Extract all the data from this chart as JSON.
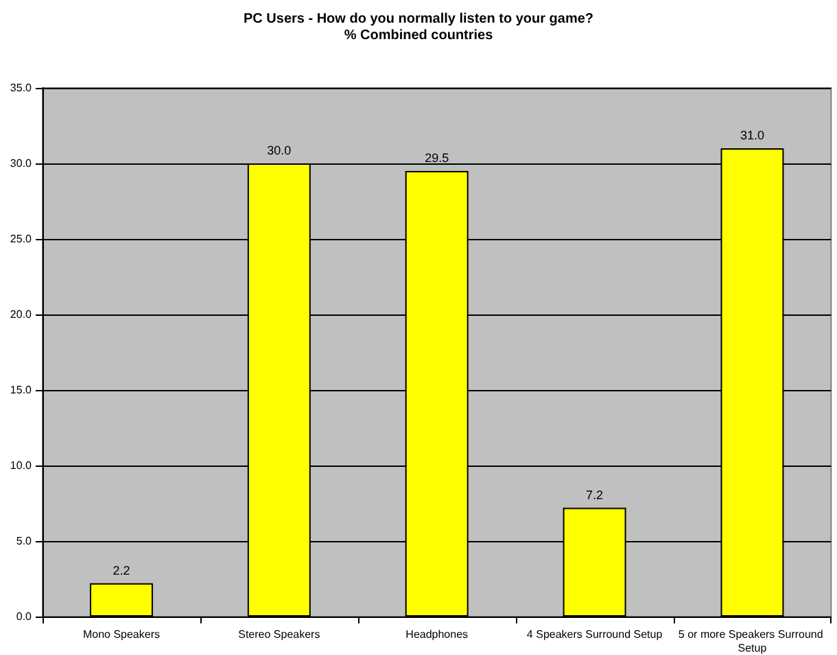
{
  "chart_data": {
    "type": "bar",
    "title": "PC Users - How do you normally listen to your game?",
    "subtitle": "% Combined countries",
    "categories": [
      "Mono Speakers",
      "Stereo Speakers",
      "Headphones",
      "4 Speakers Surround Setup",
      "5 or more Speakers Surround Setup"
    ],
    "values": [
      2.2,
      30.0,
      29.5,
      7.2,
      31.0
    ],
    "value_labels": [
      "2.2",
      "30.0",
      "29.5",
      "7.2",
      "31.0"
    ],
    "color": "#ffff00",
    "ylim": [
      0,
      35
    ],
    "yticks": [
      {
        "value": 0,
        "label": "0.0"
      },
      {
        "value": 5,
        "label": "5.0"
      },
      {
        "value": 10,
        "label": "10.0"
      },
      {
        "value": 15,
        "label": "15.0"
      },
      {
        "value": 20,
        "label": "20.0"
      },
      {
        "value": 25,
        "label": "25.0"
      },
      {
        "value": 30,
        "label": "30.0"
      },
      {
        "value": 35,
        "label": "35.0"
      }
    ],
    "grid": "y"
  }
}
